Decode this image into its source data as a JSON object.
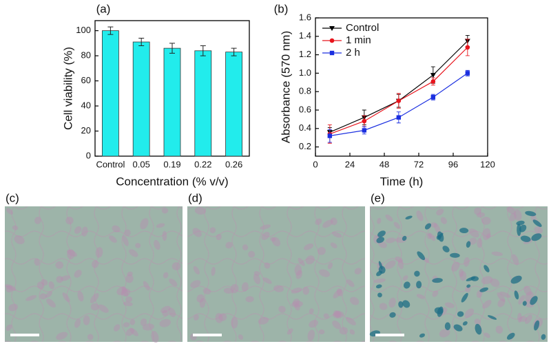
{
  "chart_data": [
    {
      "type": "bar",
      "panel": "(a)",
      "categories": [
        "Control",
        "0.05",
        "0.19",
        "0.22",
        "0.26"
      ],
      "values": [
        100,
        91,
        86,
        84,
        83
      ],
      "errors": [
        3,
        3,
        4,
        4,
        3
      ],
      "color": "#22ecec",
      "ylim": [
        0,
        108
      ],
      "yticks": [
        0,
        20,
        40,
        60,
        80,
        100
      ],
      "xlabel": "Concentration (% v/v)",
      "ylabel": "Cell viability (%)"
    },
    {
      "type": "line",
      "panel": "(b)",
      "x": [
        10,
        34,
        58,
        82,
        106
      ],
      "series": [
        {
          "name": "Control",
          "color": "#000000",
          "marker": "triangle-down",
          "values": [
            0.36,
            0.52,
            0.7,
            0.98,
            1.35
          ],
          "errors": [
            0.05,
            0.08,
            0.07,
            0.09,
            0.06
          ]
        },
        {
          "name": "1 min",
          "color": "#e8141c",
          "marker": "circle",
          "values": [
            0.34,
            0.48,
            0.7,
            0.91,
            1.28
          ],
          "errors": [
            0.1,
            0.06,
            0.08,
            0.04,
            0.09
          ]
        },
        {
          "name": "2 h",
          "color": "#1a2ee0",
          "marker": "square",
          "values": [
            0.32,
            0.38,
            0.52,
            0.74,
            1.0
          ],
          "errors": [
            0.07,
            0.04,
            0.06,
            0.03,
            0.03
          ]
        }
      ],
      "xlim": [
        0,
        120
      ],
      "xticks": [
        0,
        24,
        48,
        72,
        96,
        120
      ],
      "ylim": [
        0.1,
        1.6
      ],
      "yticks": [
        0.2,
        0.4,
        0.6,
        0.8,
        1.0,
        1.2,
        1.4,
        1.6
      ],
      "xlabel": "Time (h)",
      "ylabel": "Absorbance (570 nm)",
      "legend": "upper-left"
    }
  ],
  "images": [
    {
      "panel": "(c)"
    },
    {
      "panel": "(d)"
    },
    {
      "panel": "(e)"
    }
  ]
}
